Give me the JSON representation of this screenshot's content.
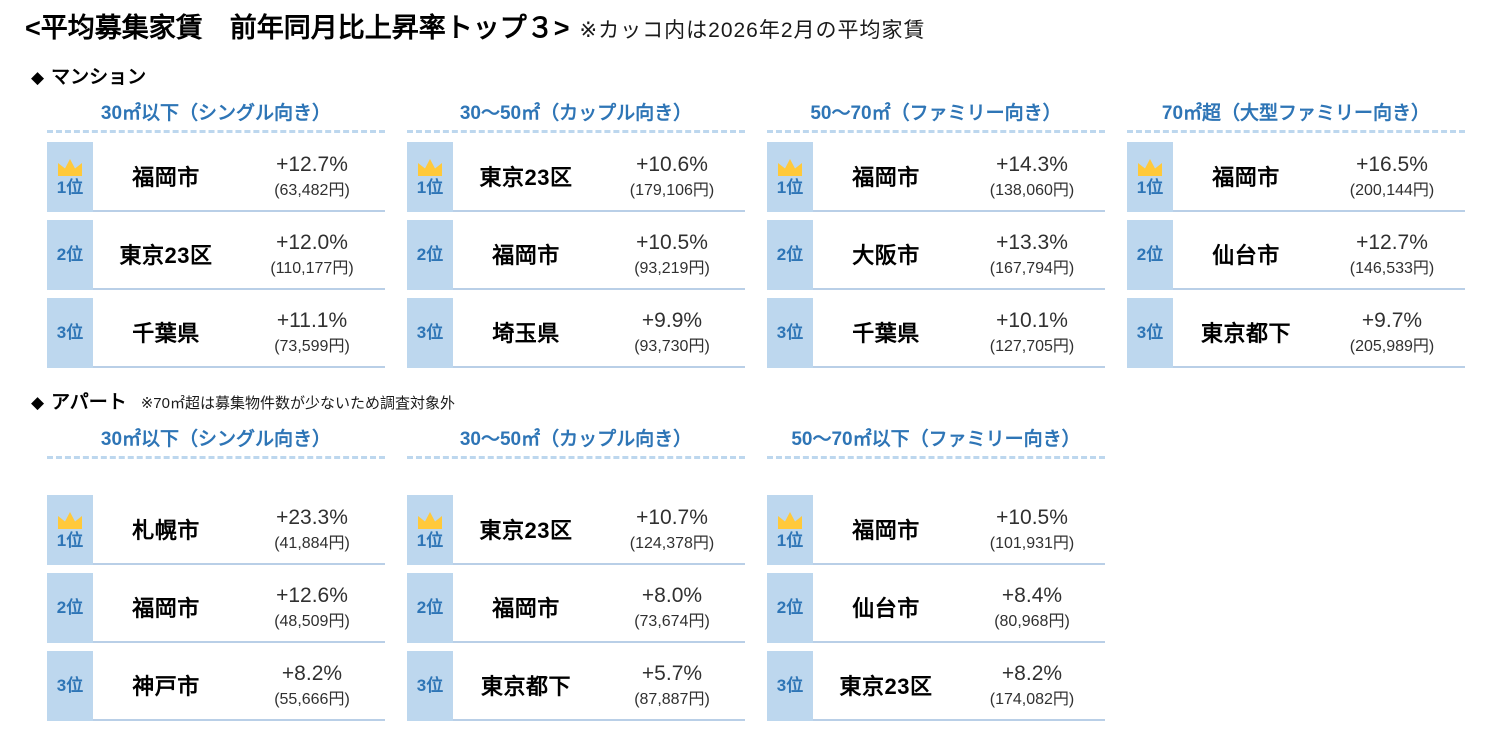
{
  "title": {
    "main": "<平均募集家賃　前年同月比上昇率トップ３>",
    "note": "※カッコ内は2026年2月の平均家賃"
  },
  "bullet": "◆",
  "colors": {
    "accent_blue": "#2E75B6",
    "rank_cell_bg": "#BDD7EE",
    "row_border": "#B9CFE7",
    "dashed_line": "#BDD7EE",
    "crown_gold": "#FFC93A",
    "value_text": "#303030"
  },
  "icons": {
    "rank_1": "crown-icon",
    "section_marker": "diamond-icon"
  },
  "chart_data": {
    "type": "table",
    "title": "平均募集家賃　前年同月比上昇率トップ３",
    "note": "カッコ内は2026年2月の平均家賃",
    "sections": [
      {
        "id": "mansion",
        "title": "マンション",
        "note": "",
        "tables": [
          {
            "header": "30㎡以下（シングル向き）",
            "rows": [
              {
                "rank": "1位",
                "area": "福岡市",
                "yoy": "+12.7%",
                "avg_rent": "(63,482円)"
              },
              {
                "rank": "2位",
                "area": "東京23区",
                "yoy": "+12.0%",
                "avg_rent": "(110,177円)"
              },
              {
                "rank": "3位",
                "area": "千葉県",
                "yoy": "+11.1%",
                "avg_rent": "(73,599円)"
              }
            ]
          },
          {
            "header": "30～50㎡（カップル向き）",
            "rows": [
              {
                "rank": "1位",
                "area": "東京23区",
                "yoy": "+10.6%",
                "avg_rent": "(179,106円)"
              },
              {
                "rank": "2位",
                "area": "福岡市",
                "yoy": "+10.5%",
                "avg_rent": "(93,219円)"
              },
              {
                "rank": "3位",
                "area": "埼玉県",
                "yoy": "+9.9%",
                "avg_rent": "(93,730円)"
              }
            ]
          },
          {
            "header": "50～70㎡（ファミリー向き）",
            "rows": [
              {
                "rank": "1位",
                "area": "福岡市",
                "yoy": "+14.3%",
                "avg_rent": "(138,060円)"
              },
              {
                "rank": "2位",
                "area": "大阪市",
                "yoy": "+13.3%",
                "avg_rent": "(167,794円)"
              },
              {
                "rank": "3位",
                "area": "千葉県",
                "yoy": "+10.1%",
                "avg_rent": "(127,705円)"
              }
            ]
          },
          {
            "header": "70㎡超（大型ファミリー向き）",
            "rows": [
              {
                "rank": "1位",
                "area": "福岡市",
                "yoy": "+16.5%",
                "avg_rent": "(200,144円)"
              },
              {
                "rank": "2位",
                "area": "仙台市",
                "yoy": "+12.7%",
                "avg_rent": "(146,533円)"
              },
              {
                "rank": "3位",
                "area": "東京都下",
                "yoy": "+9.7%",
                "avg_rent": "(205,989円)"
              }
            ]
          }
        ]
      },
      {
        "id": "apartment",
        "title": "アパート",
        "note": "※70㎡超は募集物件数が少ないため調査対象外",
        "tables": [
          {
            "header": "30㎡以下（シングル向き）",
            "rows": [
              {
                "rank": "1位",
                "area": "札幌市",
                "yoy": "+23.3%",
                "avg_rent": "(41,884円)"
              },
              {
                "rank": "2位",
                "area": "福岡市",
                "yoy": "+12.6%",
                "avg_rent": "(48,509円)"
              },
              {
                "rank": "3位",
                "area": "神戸市",
                "yoy": "+8.2%",
                "avg_rent": "(55,666円)"
              }
            ]
          },
          {
            "header": "30～50㎡（カップル向き）",
            "rows": [
              {
                "rank": "1位",
                "area": "東京23区",
                "yoy": "+10.7%",
                "avg_rent": "(124,378円)"
              },
              {
                "rank": "2位",
                "area": "福岡市",
                "yoy": "+8.0%",
                "avg_rent": "(73,674円)"
              },
              {
                "rank": "3位",
                "area": "東京都下",
                "yoy": "+5.7%",
                "avg_rent": "(87,887円)"
              }
            ]
          },
          {
            "header": "50～70㎡以下（ファミリー向き）",
            "rows": [
              {
                "rank": "1位",
                "area": "福岡市",
                "yoy": "+10.5%",
                "avg_rent": "(101,931円)"
              },
              {
                "rank": "2位",
                "area": "仙台市",
                "yoy": "+8.4%",
                "avg_rent": "(80,968円)"
              },
              {
                "rank": "3位",
                "area": "東京23区",
                "yoy": "+8.2%",
                "avg_rent": "(174,082円)"
              }
            ]
          }
        ]
      }
    ]
  }
}
